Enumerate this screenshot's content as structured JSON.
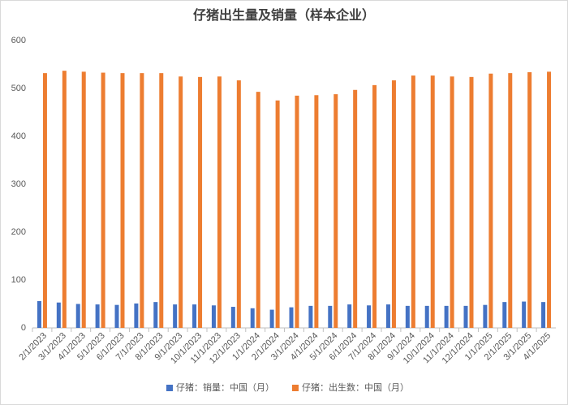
{
  "chart_data": {
    "type": "bar",
    "title": "仔猪出生量及销量（样本企业）",
    "categories": [
      "2/1/2023",
      "3/1/2023",
      "4/1/2023",
      "5/1/2023",
      "6/1/2023",
      "7/1/2023",
      "8/1/2023",
      "9/1/2023",
      "10/1/2023",
      "11/1/2023",
      "12/1/2023",
      "1/1/2024",
      "2/1/2024",
      "3/1/2024",
      "4/1/2024",
      "5/1/2024",
      "6/1/2024",
      "7/1/2024",
      "8/1/2024",
      "9/1/2024",
      "10/1/2024",
      "11/1/2024",
      "12/1/2024",
      "1/1/2025",
      "2/1/2025",
      "3/1/2025",
      "4/1/2025"
    ],
    "series": [
      {
        "name": "仔猪：销量：中国（月）",
        "color": "#4472c4",
        "values": [
          56,
          53,
          50,
          49,
          48,
          51,
          54,
          49,
          49,
          47,
          44,
          41,
          38,
          43,
          46,
          46,
          49,
          47,
          49,
          46,
          46,
          46,
          46,
          48,
          54,
          55,
          54
        ]
      },
      {
        "name": "仔猪：出生数：中国（月）",
        "color": "#ed7d31",
        "values": [
          532,
          537,
          535,
          533,
          532,
          532,
          532,
          525,
          524,
          525,
          517,
          493,
          475,
          485,
          486,
          488,
          497,
          507,
          517,
          527,
          527,
          525,
          524,
          531,
          532,
          534,
          535
        ]
      }
    ],
    "ylim": [
      0,
      600
    ],
    "yticks": [
      0,
      100,
      200,
      300,
      400,
      500,
      600
    ],
    "grid": false,
    "legend": "bottom"
  }
}
